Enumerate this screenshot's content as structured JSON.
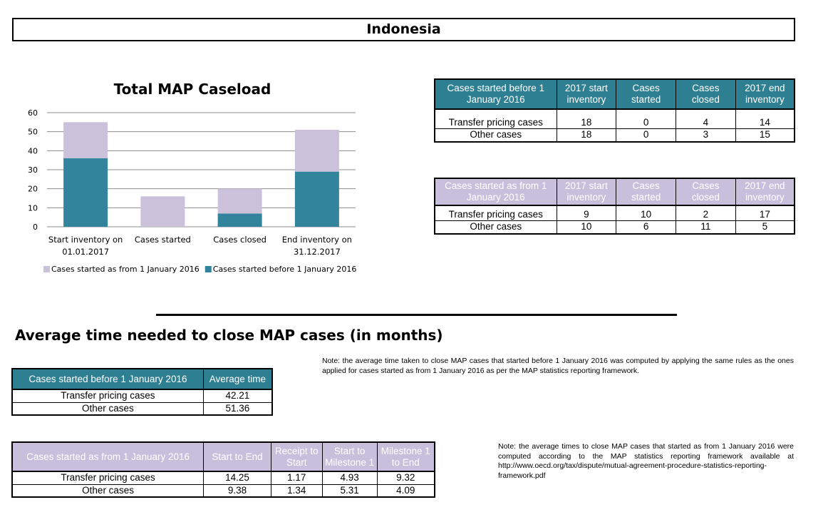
{
  "country": "Indonesia",
  "chart_data": {
    "type": "bar",
    "stacked": true,
    "title": "Total MAP Caseload",
    "categories": [
      [
        "Start inventory on",
        "01.01.2017"
      ],
      [
        "Cases started"
      ],
      [
        "Cases closed"
      ],
      [
        "End inventory on",
        "31.12.2017"
      ]
    ],
    "series": [
      {
        "name": "Cases started before 1 January 2016",
        "color": "#31849b",
        "values": [
          36,
          0,
          7,
          29
        ]
      },
      {
        "name": "Cases started as from 1 January 2016",
        "color": "#ccc1da",
        "values": [
          19,
          16,
          13,
          22
        ]
      }
    ],
    "legend_order": [
      1,
      0
    ],
    "ylim": [
      0,
      60
    ],
    "yticks": [
      "0",
      "10",
      "20",
      "30",
      "40",
      "50",
      "60"
    ],
    "grid": true,
    "legend_position": "bottom"
  },
  "table_before": {
    "headers": [
      "Cases started before 1 January 2016",
      "2017 start inventory",
      "Cases started",
      "Cases closed",
      "2017 end inventory"
    ],
    "rows": [
      [
        "Transfer pricing cases",
        "18",
        "0",
        "4",
        "14"
      ],
      [
        "Other cases",
        "18",
        "0",
        "3",
        "15"
      ]
    ]
  },
  "table_after": {
    "headers": [
      "Cases started as from 1 January 2016",
      "2017 start inventory",
      "Cases started",
      "Cases closed",
      "2017 end inventory"
    ],
    "rows": [
      [
        "Transfer pricing cases",
        "9",
        "10",
        "2",
        "17"
      ],
      [
        "Other cases",
        "10",
        "6",
        "11",
        "5"
      ]
    ]
  },
  "avg_title": "Average time needed to close MAP cases (in months)",
  "avg_before": {
    "headers": [
      "Cases started before 1 January 2016",
      "Average time"
    ],
    "rows": [
      [
        "Transfer pricing cases",
        "42.21"
      ],
      [
        "Other cases",
        "51.36"
      ]
    ]
  },
  "avg_after": {
    "headers": [
      "Cases started as from 1 January 2016",
      "Start to End",
      "Receipt to Start",
      "Start to Milestone 1",
      "Milestone 1 to End"
    ],
    "rows": [
      [
        "Transfer pricing cases",
        "14.25",
        "1.17",
        "4.93",
        "9.32"
      ],
      [
        "Other cases",
        "9.38",
        "1.34",
        "5.31",
        "4.09"
      ]
    ]
  },
  "note1": "Note: the average time taken to close MAP cases that started before 1 January 2016 was computed by applying the same rules as the ones applied for cases started as from 1 January 2016 as per the MAP statistics reporting framework.",
  "note2": "Note: the average times to close MAP cases that started as from 1 January 2016 were computed according to the MAP statistics reporting framework available at http://www.oecd.org/tax/dispute/mutual-agreement-procedure-statistics-reporting-framework.pdf"
}
